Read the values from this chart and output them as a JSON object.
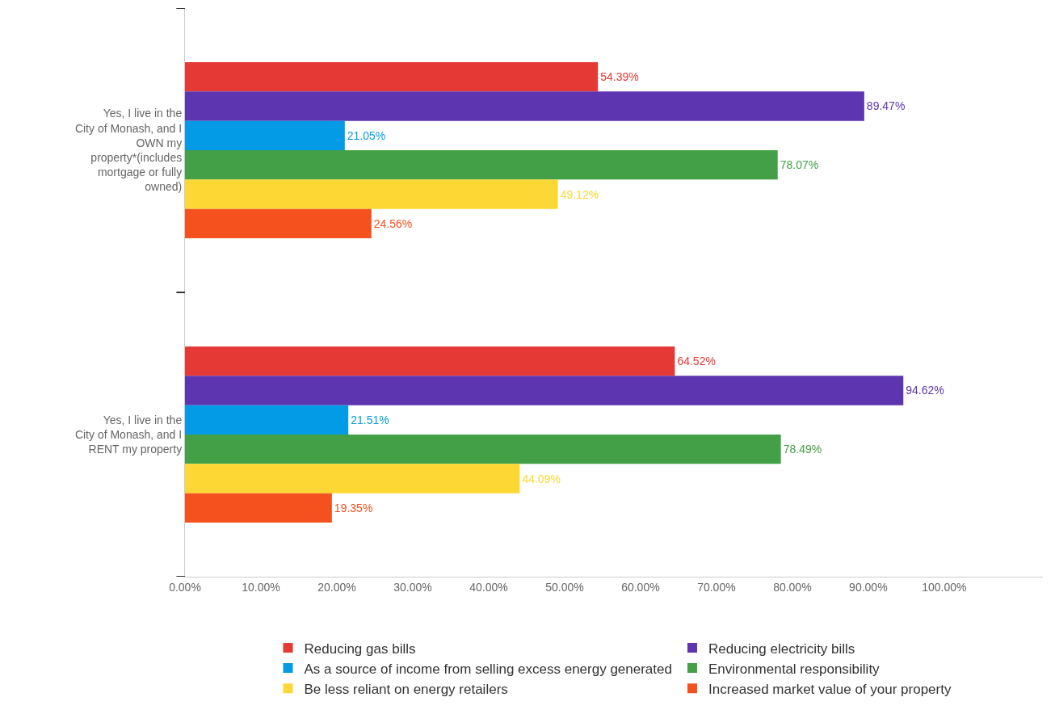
{
  "chart_data": {
    "type": "bar",
    "orientation": "horizontal",
    "categories": [
      "Yes, I live in the City of Monash, and I OWN my property*(includes mortgage or fully owned)",
      "Yes, I live in the City of Monash, and I RENT my property"
    ],
    "series": [
      {
        "name": "Reducing gas bills",
        "color": "#e53935",
        "values": [
          54.39,
          64.52
        ],
        "value_labels": [
          "54.39%",
          "64.52%"
        ]
      },
      {
        "name": "Reducing electricity bills",
        "color": "#5e35b1",
        "values": [
          89.47,
          94.62
        ],
        "value_labels": [
          "89.47%",
          "94.62%"
        ]
      },
      {
        "name": "As a source of income from selling excess energy generated",
        "color": "#039be5",
        "values": [
          21.05,
          21.51
        ],
        "value_labels": [
          "21.05%",
          "21.51%"
        ]
      },
      {
        "name": "Environmental responsibility",
        "color": "#43a047",
        "values": [
          78.07,
          78.49
        ],
        "value_labels": [
          "78.07%",
          "78.49%"
        ]
      },
      {
        "name": "Be less reliant on energy retailers",
        "color": "#fdd835",
        "values": [
          49.12,
          44.09
        ],
        "value_labels": [
          "49.12%",
          "44.09%"
        ]
      },
      {
        "name": "Increased market value of your property",
        "color": "#f4511e",
        "values": [
          24.56,
          19.35
        ],
        "value_labels": [
          "24.56%",
          "19.35%"
        ]
      }
    ],
    "xlim": [
      0,
      113
    ],
    "xticks": [
      {
        "value": 0,
        "label": "0.00%"
      },
      {
        "value": 10,
        "label": "10.00%"
      },
      {
        "value": 20,
        "label": "20.00%"
      },
      {
        "value": 30,
        "label": "30.00%"
      },
      {
        "value": 40,
        "label": "40.00%"
      },
      {
        "value": 50,
        "label": "50.00%"
      },
      {
        "value": 60,
        "label": "60.00%"
      },
      {
        "value": 70,
        "label": "70.00%"
      },
      {
        "value": 80,
        "label": "80.00%"
      },
      {
        "value": 90,
        "label": "90.00%"
      },
      {
        "value": 100,
        "label": "100.00%"
      }
    ],
    "legend": "bottom"
  }
}
